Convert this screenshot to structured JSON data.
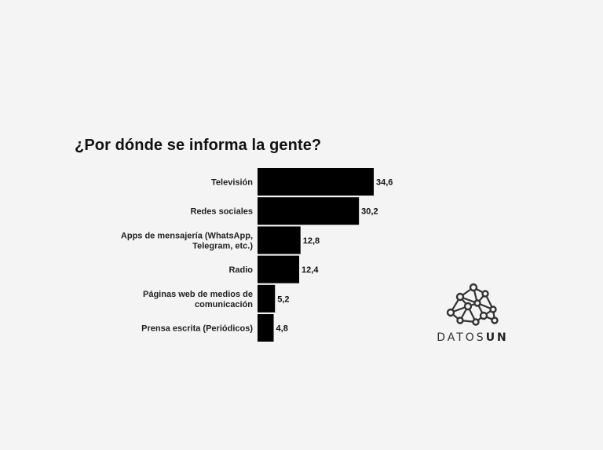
{
  "chart_data": {
    "type": "bar",
    "orientation": "horizontal",
    "title": "¿Por dónde se informa la gente?",
    "categories": [
      [
        "Televisión"
      ],
      [
        "Redes sociales"
      ],
      [
        "Apps de mensajería (WhatsApp,",
        "Telegram, etc.)"
      ],
      [
        "Radio"
      ],
      [
        "Páginas web de medios de",
        "comunicación"
      ],
      [
        "Prensa escrita (Periódicos)"
      ]
    ],
    "values": [
      34.6,
      30.2,
      12.8,
      12.4,
      5.2,
      4.8
    ],
    "value_labels": [
      "34,6",
      "30,2",
      "12,8",
      "12,4",
      "5,2",
      "4,8"
    ],
    "xlim": [
      0,
      34.6
    ],
    "grid": false,
    "bar_color": "#000000"
  },
  "logo": {
    "text_light": "DATOS",
    "text_bold": "UN",
    "color": "#333333"
  }
}
